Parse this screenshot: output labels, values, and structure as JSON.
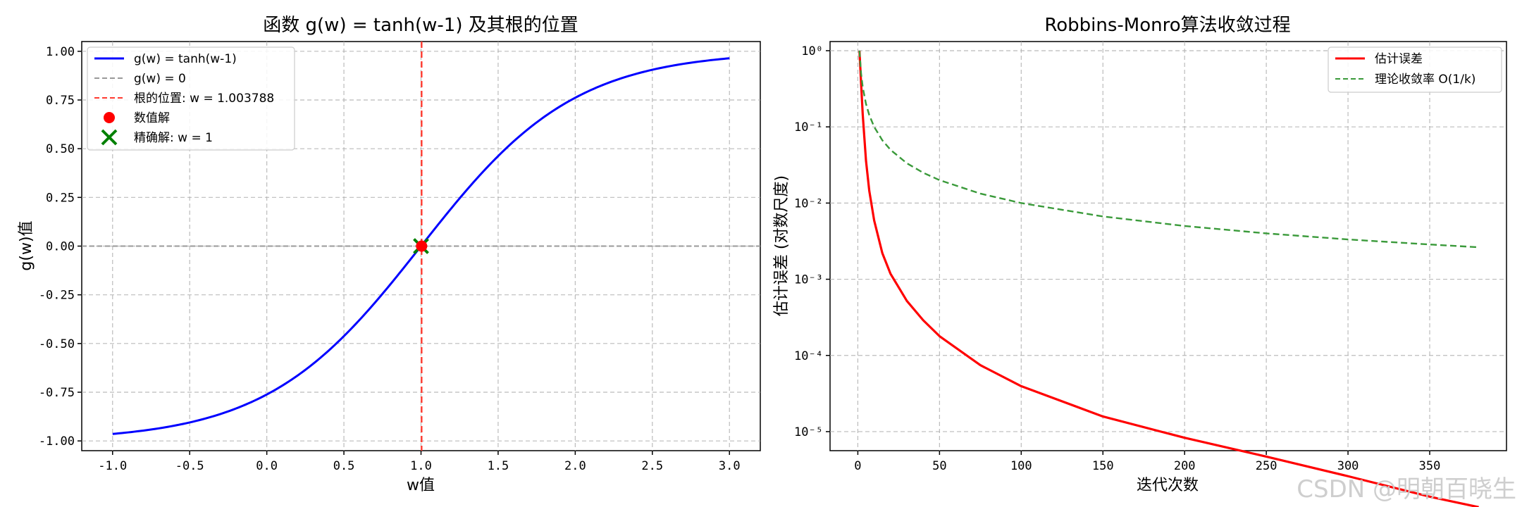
{
  "watermark": "CSDN @明朝百晓生",
  "colors": {
    "blue": "#0000ff",
    "red": "#ff0000",
    "green": "#008000",
    "gray": "#999999",
    "root": "#ff3b30",
    "green_dashed": "#3a9a3a"
  },
  "chart_data": [
    {
      "type": "line",
      "title": "函数 g(w) = tanh(w-1) 及其根的位置",
      "xlabel": "w值",
      "ylabel": "g(w)值",
      "xlim": [
        -1.2,
        3.2
      ],
      "ylim": [
        -1.05,
        1.05
      ],
      "xticks": [
        -1.0,
        -0.5,
        0.0,
        0.5,
        1.0,
        1.5,
        2.0,
        2.5,
        3.0
      ],
      "xtick_labels": [
        "-1.0",
        "-0.5",
        "0.0",
        "0.5",
        "1.0",
        "1.5",
        "2.0",
        "2.5",
        "3.0"
      ],
      "yticks": [
        -1.0,
        -0.75,
        -0.5,
        -0.25,
        0.0,
        0.25,
        0.5,
        0.75,
        1.0
      ],
      "ytick_labels": [
        "-1.00",
        "-0.75",
        "-0.50",
        "-0.25",
        "0.00",
        "0.25",
        "0.50",
        "0.75",
        "1.00"
      ],
      "grid": true,
      "legend_position": "upper-left",
      "series": [
        {
          "name": "g(w) = tanh(w-1)",
          "style": "solid",
          "color": "#0000ff",
          "x": [
            -1.0,
            -0.75,
            -0.5,
            -0.25,
            0.0,
            0.25,
            0.5,
            0.75,
            1.0,
            1.25,
            1.5,
            1.75,
            2.0,
            2.25,
            2.5,
            2.75,
            3.0
          ],
          "y": [
            -0.964,
            -0.941,
            -0.905,
            -0.848,
            -0.762,
            -0.635,
            -0.462,
            -0.245,
            0.0,
            0.245,
            0.462,
            0.635,
            0.762,
            0.848,
            0.905,
            0.941,
            0.964
          ]
        },
        {
          "name": "g(w) = 0",
          "style": "dashed",
          "color": "#999999",
          "y_const": 0.0
        },
        {
          "name": "根的位置: w = 1.003788",
          "style": "dashed",
          "color": "#ff3b30",
          "x_const": 1.003788
        },
        {
          "name": "数值解",
          "style": "marker-circle",
          "color": "#ff0000",
          "x": [
            1.003788
          ],
          "y": [
            0.0
          ]
        },
        {
          "name": "精确解: w = 1",
          "style": "marker-x",
          "color": "#008000",
          "x": [
            1.0
          ],
          "y": [
            0.0
          ]
        }
      ]
    },
    {
      "type": "line",
      "title": "Robbins-Monro算法收敛过程",
      "xlabel": "迭代次数",
      "ylabel": "估计误差 (对数尺度)",
      "xlim": [
        -17,
        397
      ],
      "ylim_log10": [
        -5.25,
        0.12
      ],
      "yscale": "log",
      "xticks": [
        0,
        50,
        100,
        150,
        200,
        250,
        300,
        350
      ],
      "xtick_labels": [
        "0",
        "50",
        "100",
        "150",
        "200",
        "250",
        "300",
        "350"
      ],
      "yticks_exp": [
        0,
        -1,
        -2,
        -3,
        -4,
        -5
      ],
      "ytick_labels": [
        "10⁰",
        "10⁻¹",
        "10⁻²",
        "10⁻³",
        "10⁻⁴",
        "10⁻⁵"
      ],
      "grid": true,
      "legend_position": "upper-right",
      "series": [
        {
          "name": "估计误差",
          "style": "solid",
          "color": "#ff0000",
          "x": [
            1,
            2,
            3,
            5,
            7,
            10,
            15,
            20,
            30,
            40,
            50,
            75,
            100,
            150,
            200,
            250,
            300,
            350,
            380
          ],
          "y": [
            0.996,
            0.372,
            0.145,
            0.036,
            0.0145,
            0.0059,
            0.0022,
            0.00118,
            0.00052,
            0.00029,
            0.000179,
            7.45e-05,
            3.95e-05,
            1.58e-05,
            8.3e-06,
            4.7e-06,
            2.6e-06,
            1.4e-06,
            1.02e-06
          ]
        },
        {
          "name": "理论收敛率 O(1/k)",
          "style": "dashed",
          "color": "#3a9a3a",
          "x": [
            1,
            2,
            3,
            5,
            7,
            10,
            15,
            20,
            30,
            40,
            50,
            75,
            100,
            150,
            200,
            250,
            300,
            350,
            380
          ],
          "y": [
            1.0,
            0.5,
            0.3333,
            0.2,
            0.1429,
            0.1,
            0.0667,
            0.05,
            0.0333,
            0.025,
            0.02,
            0.0133,
            0.01,
            0.00667,
            0.005,
            0.004,
            0.00333,
            0.00286,
            0.00263
          ]
        }
      ]
    }
  ]
}
